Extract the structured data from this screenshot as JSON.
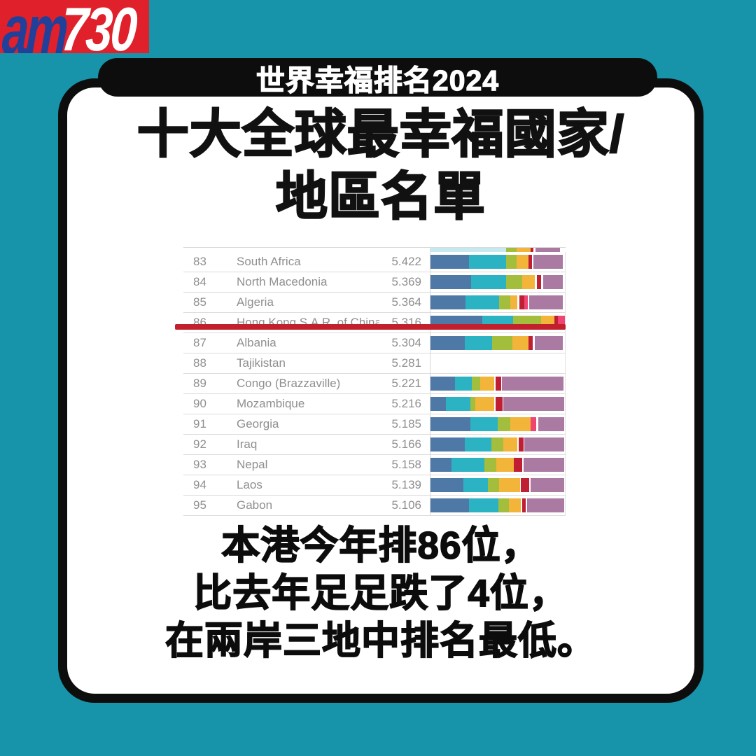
{
  "logo": {
    "am": "am",
    "number": "730"
  },
  "banner": {
    "label": "世界幸福排名2024"
  },
  "title": {
    "line1": "十大全球最幸福國家/",
    "line2": "地區名單"
  },
  "summary": {
    "line1": "本港今年排86位，",
    "line2": "比去年足足跌了4位，",
    "line3": "在兩岸三地中排名最低。"
  },
  "colors": {
    "background_teal": "#1794aa",
    "logo_red": "#e0202a",
    "logo_blue": "#21409a",
    "banner_black": "#0d0d0d",
    "card_border_black": "#0d0d0d",
    "highlight_red": "#c2202d",
    "table_text_gray": "#8f8f8f"
  },
  "chart_data": {
    "type": "table",
    "title": "世界幸福排名2024 — ranks 83 to 95 with happiness score stacked bars",
    "columns": [
      "rank",
      "country",
      "score",
      "score_composition_bar"
    ],
    "legend_position": "none",
    "grid": "horizontal row separators",
    "highlight": {
      "rank": "86",
      "country": "Hong Kong S.A.R. of China",
      "score": "5.316",
      "style": "red-underline"
    },
    "bar_palette": {
      "blue": "#4e79a7",
      "teal": "#2bb3c4",
      "green": "#a3bd3d",
      "yellow": "#f2b53a",
      "red": "#c01e33",
      "pink": "#ef4571",
      "mauve": "#ab7aa3",
      "teal_pale": "#c5e9ee",
      "gap": "transparent"
    },
    "partial_top_bar": [
      [
        "teal_pale",
        56
      ],
      [
        "green",
        8
      ],
      [
        "yellow",
        10
      ],
      [
        "red",
        2.5
      ],
      [
        "gap",
        1.5
      ],
      [
        "mauve",
        18
      ]
    ],
    "rows": [
      {
        "rank": "83",
        "country": "South Africa",
        "score": "5.422",
        "bar": [
          [
            "blue",
            28.5
          ],
          [
            "teal",
            28
          ],
          [
            "green",
            7.8
          ],
          [
            "yellow",
            8.8
          ],
          [
            "red",
            2.2
          ],
          [
            "gap",
            1.5
          ],
          [
            "mauve",
            21.5
          ]
        ]
      },
      {
        "rank": "84",
        "country": "North Macedonia",
        "score": "5.369",
        "bar": [
          [
            "blue",
            30
          ],
          [
            "teal",
            26
          ],
          [
            "green",
            12
          ],
          [
            "yellow",
            9.8
          ],
          [
            "gap",
            1.5
          ],
          [
            "red",
            3.1
          ],
          [
            "gap",
            1.5
          ],
          [
            "mauve",
            14.5
          ]
        ]
      },
      {
        "rank": "85",
        "country": "Algeria",
        "score": "5.364",
        "bar": [
          [
            "blue",
            26
          ],
          [
            "teal",
            25
          ],
          [
            "green",
            8.3
          ],
          [
            "yellow",
            5.2
          ],
          [
            "gap",
            1.8
          ],
          [
            "red",
            3.6
          ],
          [
            "pink",
            2.6
          ],
          [
            "gap",
            1
          ],
          [
            "mauve",
            25
          ]
        ]
      },
      {
        "rank": "86",
        "country": "Hong Kong S.A.R. of China",
        "score": "5.316",
        "bar": [
          [
            "blue",
            38.3
          ],
          [
            "teal",
            23.3
          ],
          [
            "green",
            20.7
          ],
          [
            "yellow",
            9.8
          ],
          [
            "red",
            2.6
          ],
          [
            "pink",
            5.3
          ]
        ]
      },
      {
        "rank": "87",
        "country": "Albania",
        "score": "5.304",
        "bar": [
          [
            "blue",
            25.4
          ],
          [
            "teal",
            20.2
          ],
          [
            "green",
            15.5
          ],
          [
            "yellow",
            11.9
          ],
          [
            "red",
            3.1
          ],
          [
            "gap",
            1.5
          ],
          [
            "mauve",
            20.7
          ]
        ]
      },
      {
        "rank": "88",
        "country": "Tajikistan",
        "score": "5.281",
        "bar": []
      },
      {
        "rank": "89",
        "country": "Congo (Brazzaville)",
        "score": "5.221",
        "bar": [
          [
            "blue",
            18.1
          ],
          [
            "teal",
            12.4
          ],
          [
            "green",
            6.7
          ],
          [
            "yellow",
            10.4
          ],
          [
            "gap",
            1
          ],
          [
            "red",
            4.1
          ],
          [
            "gap",
            0.5
          ],
          [
            "mauve",
            45.6
          ]
        ]
      },
      {
        "rank": "90",
        "country": "Mozambique",
        "score": "5.216",
        "bar": [
          [
            "blue",
            11.4
          ],
          [
            "teal",
            18.1
          ],
          [
            "green",
            3.6
          ],
          [
            "yellow",
            14.5
          ],
          [
            "gap",
            1
          ],
          [
            "red",
            5.2
          ],
          [
            "gap",
            0.5
          ],
          [
            "mauve",
            45
          ]
        ]
      },
      {
        "rank": "91",
        "country": "Georgia",
        "score": "5.185",
        "bar": [
          [
            "blue",
            29.5
          ],
          [
            "teal",
            20.7
          ],
          [
            "green",
            9.3
          ],
          [
            "yellow",
            15
          ],
          [
            "pink",
            4.1
          ],
          [
            "gap",
            1.5
          ],
          [
            "mauve",
            19.2
          ]
        ]
      },
      {
        "rank": "92",
        "country": "Iraq",
        "score": "5.166",
        "bar": [
          [
            "blue",
            25.4
          ],
          [
            "teal",
            19.7
          ],
          [
            "green",
            9.3
          ],
          [
            "yellow",
            10.4
          ],
          [
            "gap",
            1
          ],
          [
            "red",
            3.6
          ],
          [
            "gap",
            0.5
          ],
          [
            "mauve",
            29.5
          ]
        ]
      },
      {
        "rank": "93",
        "country": "Nepal",
        "score": "5.158",
        "bar": [
          [
            "blue",
            15.5
          ],
          [
            "teal",
            24.4
          ],
          [
            "green",
            9.3
          ],
          [
            "yellow",
            13
          ],
          [
            "red",
            6.2
          ],
          [
            "gap",
            1
          ],
          [
            "mauve",
            30
          ]
        ]
      },
      {
        "rank": "94",
        "country": "Laos",
        "score": "5.139",
        "bar": [
          [
            "blue",
            24.4
          ],
          [
            "teal",
            18.1
          ],
          [
            "green",
            8.8
          ],
          [
            "yellow",
            15.5
          ],
          [
            "gap",
            0.5
          ],
          [
            "red",
            6.2
          ],
          [
            "gap",
            1
          ],
          [
            "mauve",
            24.9
          ]
        ]
      },
      {
        "rank": "95",
        "country": "Gabon",
        "score": "5.106",
        "bar": [
          [
            "blue",
            28.5
          ],
          [
            "teal",
            21.8
          ],
          [
            "green",
            7.8
          ],
          [
            "yellow",
            9.3
          ],
          [
            "gap",
            1
          ],
          [
            "red",
            2.6
          ],
          [
            "gap",
            1
          ],
          [
            "mauve",
            27.5
          ]
        ]
      }
    ]
  }
}
